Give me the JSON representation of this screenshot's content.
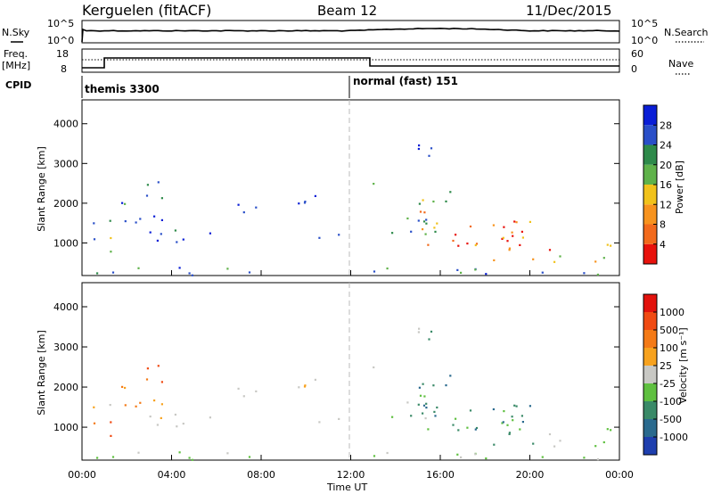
{
  "header": {
    "station": "Kerguelen (fitACF)",
    "beam": "Beam 12",
    "date": "11/Dec/2015"
  },
  "top_panel": {
    "nsky_label": "N.Sky",
    "nsky_ticks": [
      "10^5",
      "10^0"
    ],
    "nsearch_label": "N.Search",
    "nsearch_ticks": [
      "10^5",
      "10^0"
    ],
    "freq_label_1": "Freq.",
    "freq_label_2": "[MHz]",
    "freq_ticks": [
      "18",
      "8"
    ],
    "nave_label": "Nave",
    "nave_ticks": [
      "60",
      "0"
    ],
    "cpid_label": "CPID",
    "cpid_1": "themis 3300",
    "cpid_2": "normal (fast) 151"
  },
  "chart_data": [
    {
      "type": "heatmap",
      "name": "power",
      "ylabel": "Slant Range [km]",
      "xlabel": "",
      "yticks": [
        "4000",
        "3000",
        "2000",
        "1000"
      ],
      "ylim": [
        180,
        4600
      ],
      "colorbar_label": "Power [dB]",
      "colorbar_ticks": [
        "28",
        "24",
        "20",
        "16",
        "12",
        "8",
        "4"
      ],
      "colorbar_colors": [
        "#0a1ed6",
        "#2a4fc8",
        "#2e8a4a",
        "#5fb24a",
        "#f1c21b",
        "#f7931e",
        "#f26a1c",
        "#e8120c"
      ]
    },
    {
      "type": "heatmap",
      "name": "velocity",
      "ylabel": "Slant Range [km]",
      "xlabel": "Time UT",
      "yticks": [
        "4000",
        "3000",
        "2000",
        "1000"
      ],
      "ylim": [
        180,
        4600
      ],
      "xticks": [
        "00:00",
        "04:00",
        "08:00",
        "12:00",
        "16:00",
        "20:00",
        "00:00"
      ],
      "colorbar_label": "Velocity [m s⁻¹]",
      "colorbar_ticks": [
        "1000",
        "500",
        "100",
        "25",
        "-25",
        "-100",
        "-500",
        "-1000"
      ],
      "colorbar_colors": [
        "#1e3fae",
        "#2a6a8e",
        "#3a8a68",
        "#5fc040",
        "#c8c8c4",
        "#f7a21e",
        "#f47a16",
        "#f04a12",
        "#e2120c"
      ]
    }
  ]
}
